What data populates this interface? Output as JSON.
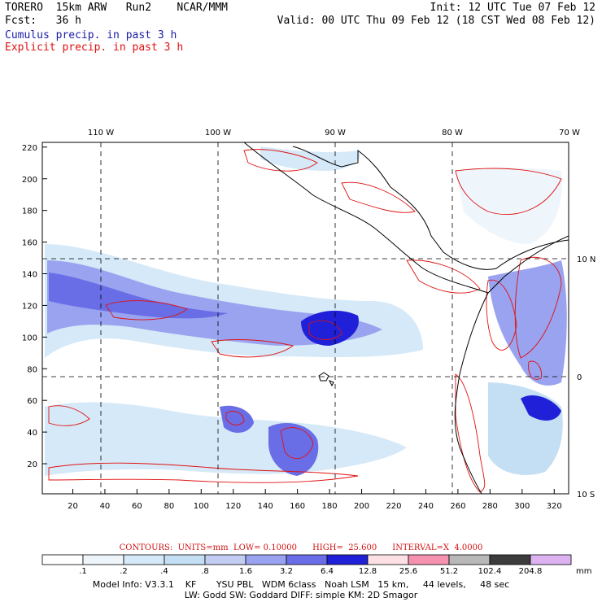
{
  "header": {
    "model": "TORERO",
    "resolution": "15km ARW",
    "run": "Run2",
    "org": "NCAR/MMM",
    "init": "Init: 12 UTC Tue 07 Feb 12",
    "fcst_label": "Fcst:",
    "fcst_value": "36 h",
    "valid": "Valid: 00 UTC Thu 09 Feb 12 (18 CST Wed 08 Feb 12)",
    "cumulus_label": "Cumulus precip. in past 3 h",
    "explicit_label": "Explicit precip. in past 3 h"
  },
  "map": {
    "top_lon_labels": [
      "110 W",
      "100 W",
      "90 W",
      "80 W",
      "70 W"
    ],
    "right_lat_labels": [
      "10 N",
      "0",
      "10 S"
    ],
    "x_ticks": [
      "20",
      "40",
      "60",
      "80",
      "100",
      "120",
      "140",
      "160",
      "180",
      "200",
      "220",
      "240",
      "260",
      "280",
      "300",
      "320"
    ],
    "y_ticks": [
      "20",
      "40",
      "60",
      "80",
      "100",
      "120",
      "140",
      "160",
      "180",
      "200",
      "220"
    ]
  },
  "contours": {
    "text": "CONTOURS:  UNITS=mm  LOW= 0.10000      HIGH=  25.600      INTERVAL=X  4.0000"
  },
  "legend": {
    "labels": [
      ".1",
      ".2",
      ".4",
      ".8",
      "1.6",
      "3.2",
      "6.4",
      "12.8",
      "25.6",
      "51.2",
      "102.4",
      "204.8"
    ],
    "unit": "mm",
    "colors": [
      "#ffffff",
      "#eef6fc",
      "#d6e9f8",
      "#c4dff4",
      "#c3cdf3",
      "#9aa3ef",
      "#6a6ee6",
      "#2020d8",
      "#fde0e4",
      "#f592b0",
      "#b8b8b8",
      "#3c3c3c",
      "#ddb2f0"
    ]
  },
  "model_info": {
    "line1": "Model Info: V3.3.1    KF       YSU PBL   WDM 6class   Noah LSM   15 km,     44 levels,     48 sec",
    "line2": "LW: Godd SW: Goddard DIFF: simple KM: 2D Smagor"
  }
}
